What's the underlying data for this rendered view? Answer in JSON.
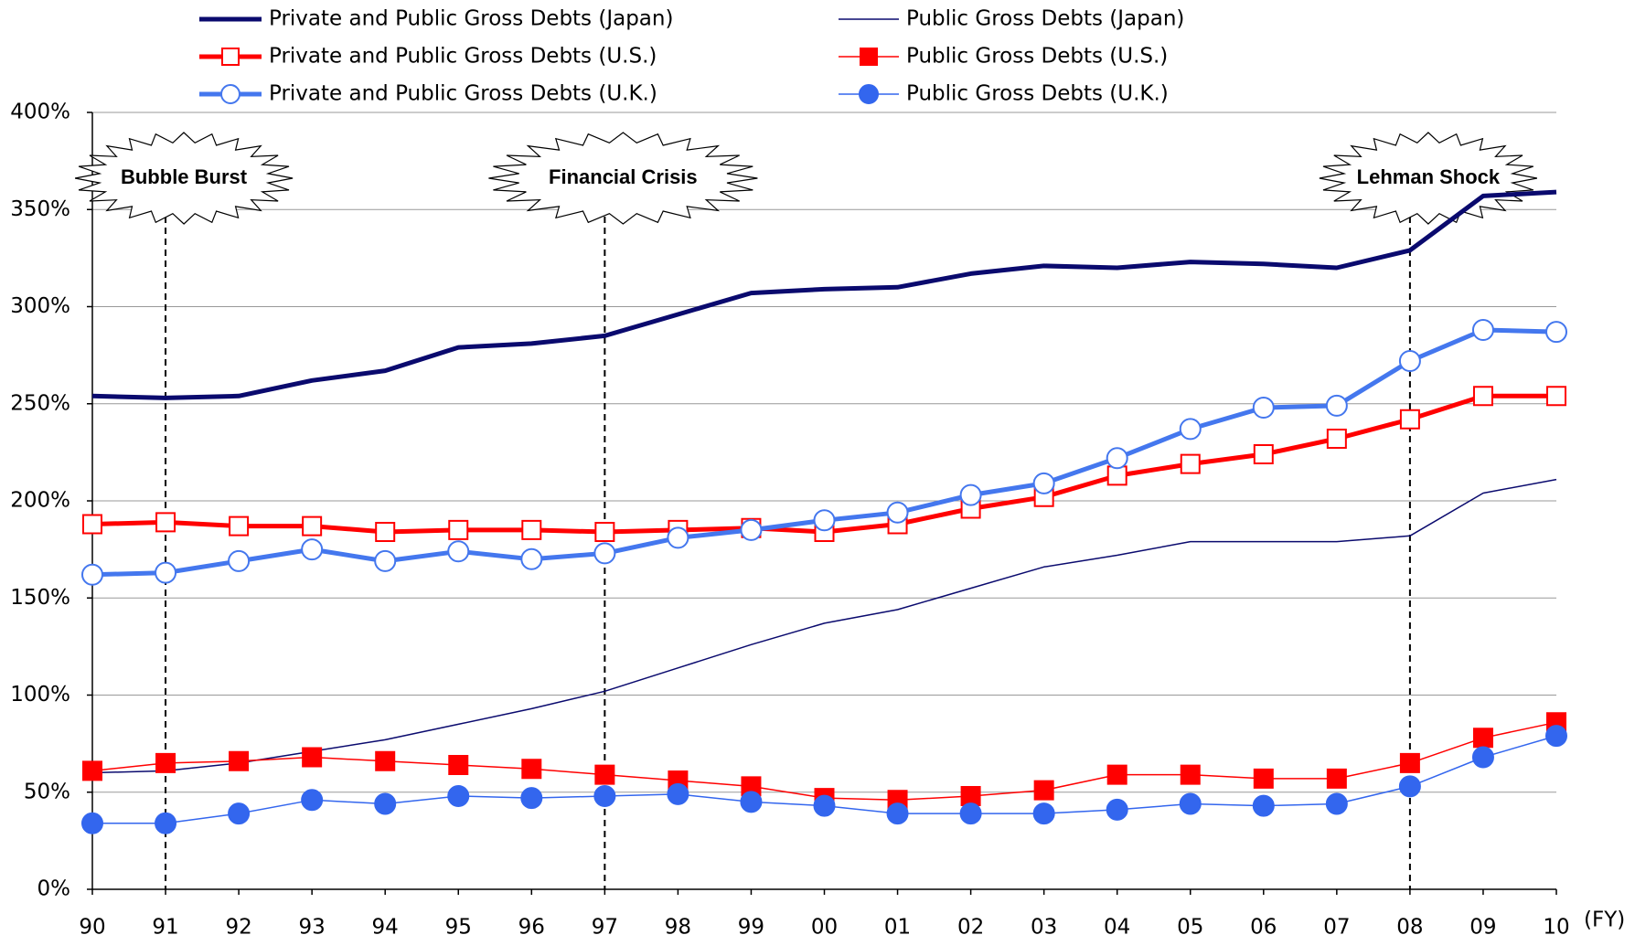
{
  "chart_data": {
    "type": "line",
    "categories": [
      "90",
      "91",
      "92",
      "93",
      "94",
      "95",
      "96",
      "97",
      "98",
      "99",
      "00",
      "01",
      "02",
      "03",
      "04",
      "05",
      "06",
      "07",
      "08",
      "09",
      "10"
    ],
    "x_unit": "(FY)",
    "ylim": [
      0,
      400
    ],
    "yticks": [
      {
        "value": 0,
        "label": "0%"
      },
      {
        "value": 50,
        "label": "50%"
      },
      {
        "value": 100,
        "label": "100%"
      },
      {
        "value": 150,
        "label": "150%"
      },
      {
        "value": 200,
        "label": "200%"
      },
      {
        "value": 250,
        "label": "250%"
      },
      {
        "value": 300,
        "label": "300%"
      },
      {
        "value": 350,
        "label": "350%"
      },
      {
        "value": 400,
        "label": "400%"
      }
    ],
    "grid": true,
    "series": [
      {
        "name": "Private and Public Gross Debts (Japan)",
        "color": "#0a0a6e",
        "line_width": 5,
        "marker": "none",
        "values": [
          254,
          253,
          254,
          262,
          267,
          279,
          281,
          285,
          296,
          307,
          309,
          310,
          317,
          321,
          320,
          323,
          322,
          320,
          329,
          357,
          359
        ]
      },
      {
        "name": "Public Gross Debts (Japan)",
        "color": "#0a0a6e",
        "line_width": 1.5,
        "marker": "none",
        "values": [
          60,
          61,
          65,
          71,
          77,
          85,
          93,
          102,
          114,
          126,
          137,
          144,
          155,
          166,
          172,
          179,
          179,
          179,
          182,
          204,
          211
        ]
      },
      {
        "name": "Private and Public Gross Debts (U.S.)",
        "color": "#ff0000",
        "line_width": 5,
        "marker": "open-square",
        "values": [
          188,
          189,
          187,
          187,
          184,
          185,
          185,
          184,
          185,
          186,
          184,
          188,
          196,
          202,
          213,
          219,
          224,
          232,
          242,
          254,
          254
        ]
      },
      {
        "name": "Public Gross Debts (U.S.)",
        "color": "#ff0000",
        "line_width": 1.5,
        "marker": "filled-square",
        "values": [
          61,
          65,
          66,
          68,
          66,
          64,
          62,
          59,
          56,
          53,
          47,
          46,
          48,
          51,
          59,
          59,
          57,
          57,
          65,
          78,
          86
        ]
      },
      {
        "name": "Private and Public Gross Debts (U.K.)",
        "color": "#4477ee",
        "line_width": 5,
        "marker": "open-circle",
        "values": [
          162,
          163,
          169,
          175,
          169,
          174,
          170,
          173,
          181,
          185,
          190,
          194,
          203,
          209,
          222,
          237,
          248,
          249,
          272,
          288,
          287
        ]
      },
      {
        "name": "Public Gross Debts (U.K.)",
        "color": "#3366ee",
        "line_width": 1.5,
        "marker": "filled-circle",
        "values": [
          34,
          34,
          39,
          46,
          44,
          48,
          47,
          48,
          49,
          45,
          43,
          39,
          39,
          39,
          41,
          44,
          43,
          44,
          53,
          68,
          79
        ]
      }
    ],
    "annotations": [
      {
        "text": "Bubble Burst",
        "category": "91"
      },
      {
        "text": "Financial Crisis",
        "category": "97"
      },
      {
        "text": "Lehman Shock",
        "category": "08"
      }
    ]
  }
}
